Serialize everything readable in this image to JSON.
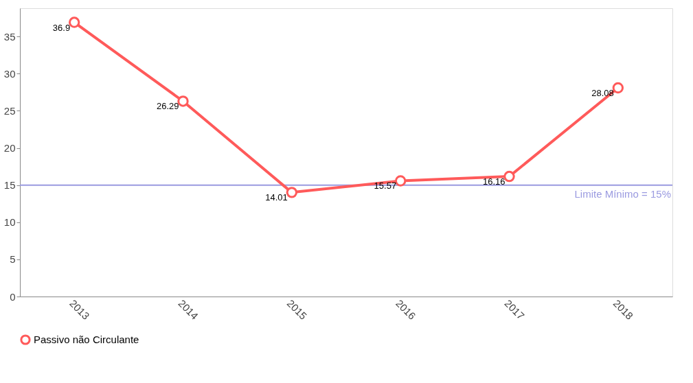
{
  "chart_data": {
    "type": "line",
    "categories": [
      "2013",
      "2014",
      "2015",
      "2016",
      "2017",
      "2018"
    ],
    "series": [
      {
        "name": "Passivo não Circulante",
        "color": "#ff5a5a",
        "values": [
          36.9,
          26.29,
          14.01,
          15.57,
          16.16,
          28.08
        ]
      }
    ],
    "ylim": [
      0,
      38.8
    ],
    "yticks": [
      0,
      5,
      10,
      15,
      20,
      25,
      30,
      35
    ],
    "ref_lines": [
      {
        "axis": "y",
        "value": 15,
        "label": "Limite Mínimo = 15%",
        "color": "#9a9ae0"
      }
    ],
    "data_labels": true,
    "legend": "bottom",
    "grid": false,
    "marker": "circle",
    "line_style": "solid"
  }
}
